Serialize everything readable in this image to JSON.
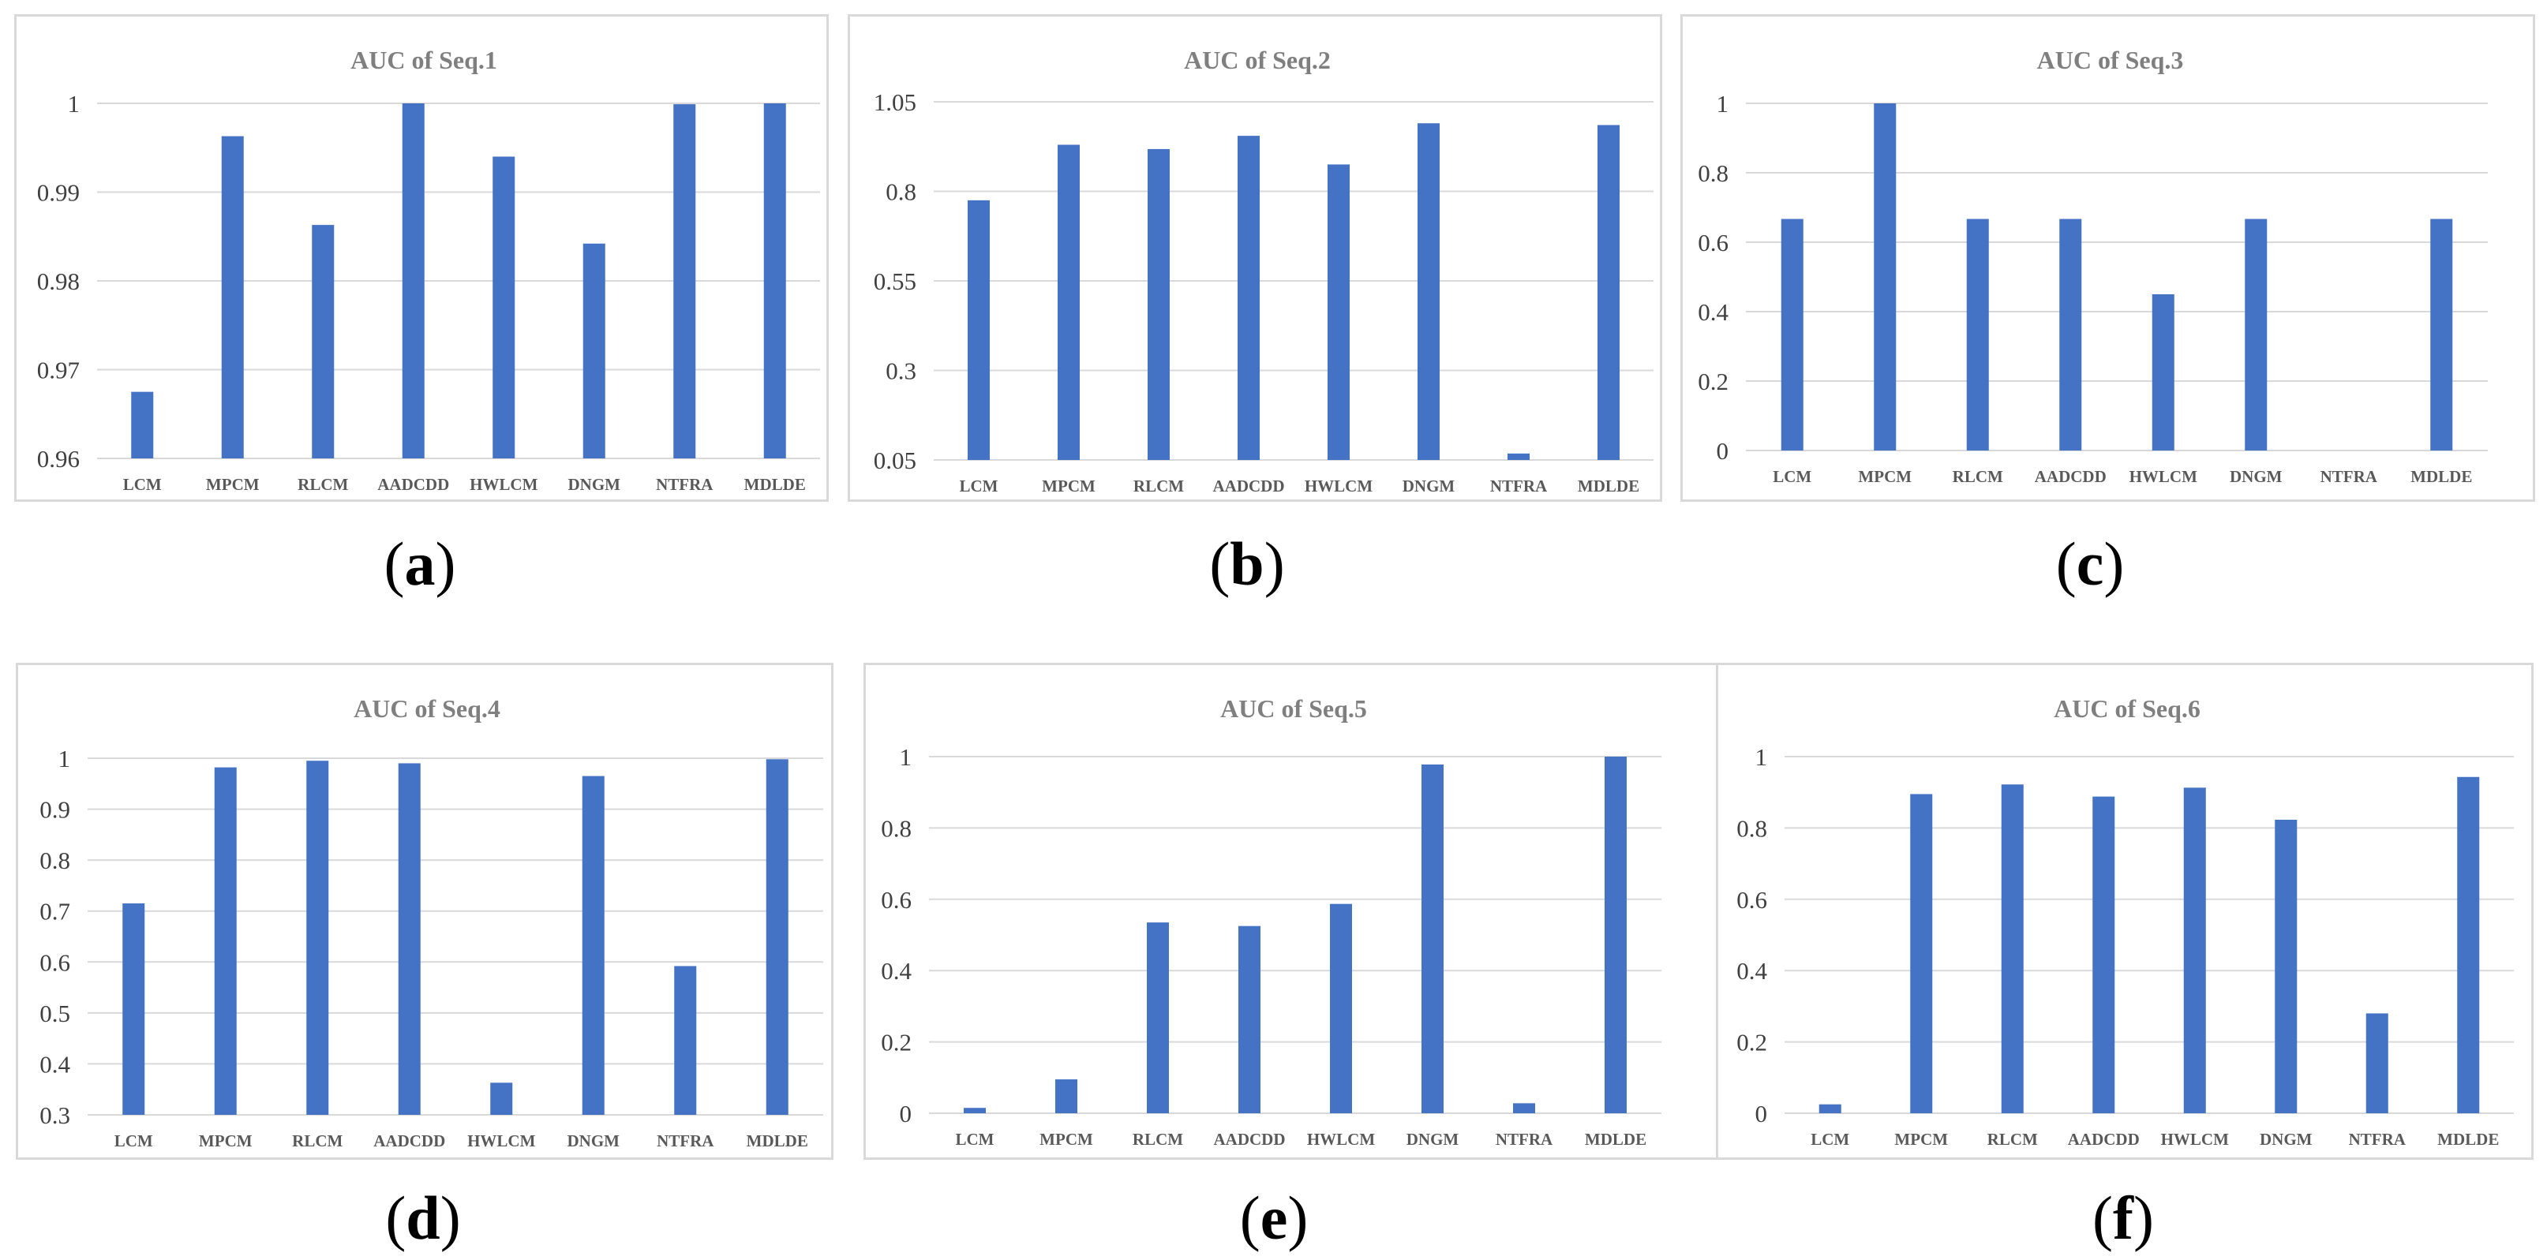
{
  "chart_data": [
    {
      "type": "bar",
      "title": "AUC of Seq.1",
      "categories": [
        "LCM",
        "MPCM",
        "RLCM",
        "AADCDD",
        "HWLCM",
        "DNGM",
        "NTFRA",
        "MDLDE"
      ],
      "values": [
        0.9675,
        0.9963,
        0.9863,
        1.0,
        0.994,
        0.9842,
        0.9999,
        1.0
      ],
      "ylim": [
        0.96,
        1.0
      ],
      "yticks": [
        0.96,
        0.97,
        0.98,
        0.99,
        1
      ],
      "ytick_labels": [
        "0.96",
        "0.97",
        "0.98",
        "0.99",
        "1"
      ],
      "color": "#4472c4",
      "caption_letter": "a"
    },
    {
      "type": "bar",
      "title": "AUC of Seq.2",
      "categories": [
        "LCM",
        "MPCM",
        "RLCM",
        "AADCDD",
        "HWLCM",
        "DNGM",
        "NTFRA",
        "MDLDE"
      ],
      "values": [
        0.775,
        0.93,
        0.918,
        0.955,
        0.875,
        0.99,
        0.068,
        0.985
      ],
      "ylim": [
        0.05,
        1.05
      ],
      "yticks": [
        0.05,
        0.3,
        0.55,
        0.8,
        1.05
      ],
      "ytick_labels": [
        "0.05",
        "0.3",
        "0.55",
        "0.8",
        "1.05"
      ],
      "color": "#4472c4",
      "caption_letter": "b"
    },
    {
      "type": "bar",
      "title": "AUC of Seq.3",
      "categories": [
        "LCM",
        "MPCM",
        "RLCM",
        "AADCDD",
        "HWLCM",
        "DNGM",
        "NTFRA",
        "MDLDE"
      ],
      "values": [
        0.667,
        1.0,
        0.667,
        0.667,
        0.45,
        0.667,
        0,
        0.667
      ],
      "ylim": [
        0,
        1
      ],
      "yticks": [
        0,
        0.2,
        0.4,
        0.6,
        0.8,
        1
      ],
      "ytick_labels": [
        "0",
        "0.2",
        "0.4",
        "0.6",
        "0.8",
        "1"
      ],
      "color": "#4472c4",
      "caption_letter": "c"
    },
    {
      "type": "bar",
      "title": "AUC of Seq.4",
      "categories": [
        "LCM",
        "MPCM",
        "RLCM",
        "AADCDD",
        "HWLCM",
        "DNGM",
        "NTFRA",
        "MDLDE"
      ],
      "values": [
        0.715,
        0.982,
        0.995,
        0.99,
        0.363,
        0.965,
        0.592,
        0.998
      ],
      "ylim": [
        0.3,
        1.0
      ],
      "yticks": [
        0.3,
        0.4,
        0.5,
        0.6,
        0.7,
        0.8,
        0.9,
        1
      ],
      "ytick_labels": [
        "0.3",
        "0.4",
        "0.5",
        "0.6",
        "0.7",
        "0.8",
        "0.9",
        "1"
      ],
      "color": "#4472c4",
      "caption_letter": "d"
    },
    {
      "type": "bar",
      "title": "AUC of Seq.5",
      "categories": [
        "LCM",
        "MPCM",
        "RLCM",
        "AADCDD",
        "HWLCM",
        "DNGM",
        "NTFRA",
        "MDLDE"
      ],
      "values": [
        0.015,
        0.095,
        0.535,
        0.525,
        0.587,
        0.978,
        0.028,
        1.0
      ],
      "ylim": [
        0,
        1
      ],
      "yticks": [
        0,
        0.2,
        0.4,
        0.6,
        0.8,
        1
      ],
      "ytick_labels": [
        "0",
        "0.2",
        "0.4",
        "0.6",
        "0.8",
        "1"
      ],
      "color": "#4472c4",
      "caption_letter": "e"
    },
    {
      "type": "bar",
      "title": "AUC of Seq.6",
      "categories": [
        "LCM",
        "MPCM",
        "RLCM",
        "AADCDD",
        "HWLCM",
        "DNGM",
        "NTFRA",
        "MDLDE"
      ],
      "values": [
        0.025,
        0.895,
        0.922,
        0.888,
        0.913,
        0.823,
        0.28,
        0.943
      ],
      "ylim": [
        0,
        1
      ],
      "yticks": [
        0,
        0.2,
        0.4,
        0.6,
        0.8,
        1
      ],
      "ytick_labels": [
        "0",
        "0.2",
        "0.4",
        "0.6",
        "0.8",
        "1"
      ],
      "color": "#4472c4",
      "caption_letter": "f"
    }
  ]
}
